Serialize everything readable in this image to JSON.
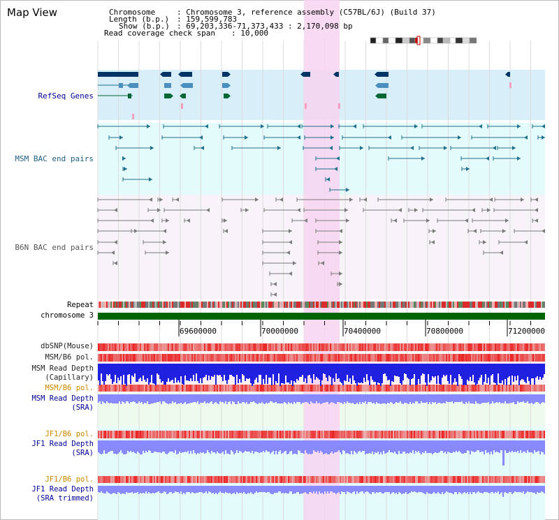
{
  "window_title": "Map View",
  "header": {
    "chromosome_key": "Chromosome",
    "chromosome_value": ": Chromosome 3, reference assembly (C57BL/6J) (Build 37)",
    "length_key": "Length (b.p.)",
    "length_value": ": 159,599,783",
    "show_key": "Show (b.p.)",
    "show_value": ": 69,203,336-71,373,433 : 2,170,098 bp",
    "coverage_key": "Read coverage check span",
    "coverage_value": ": 10,000"
  },
  "tracks": {
    "refseq": "RefSeq Genes",
    "msm_bac": "MSM BAC end pairs",
    "b6n_bac": "B6N BAC end pairs",
    "repeat": "Repeat",
    "chromosome": "chromosome 3",
    "dbsnp": "dbSNP(Mouse)",
    "msm_b6_pol": "MSM/B6 pol.",
    "msm_read_depth_cap_1": "MSM Read Depth",
    "msm_read_depth_cap_2": "(Capillary)",
    "msm_b6_pol_sra": "MSM/B6 pol.",
    "msm_read_depth_sra_1": "MSM Read Depth",
    "msm_read_depth_sra_2": "(SRA)",
    "jf1_b6_pol": "JF1/B6 pol.",
    "jf1_read_depth_1": "JF1 Read Depth",
    "jf1_read_depth_2": "(SRA)",
    "jf1_b6_pol_trim": "JF1/B6 pol.",
    "jf1_read_depth_trim_1": "JF1 Read Depth",
    "jf1_read_depth_trim_2": "(SRA trimmed)"
  },
  "axis": {
    "ticks": [
      "69600000",
      "70000000",
      "70400000",
      "70800000",
      "71200000"
    ]
  },
  "colors": {
    "refseq_bg": "#d8eef9",
    "bac_bg": "#e4fbfb",
    "b6n_bg": "#f7f3f9",
    "highlight": "#f8d3f1",
    "chromosome_bar": "#006400",
    "gene_dark": "#003366",
    "gene_mid": "#4a8fbf",
    "gene_green": "#006633",
    "msm_teal": "#1f6e8a",
    "b6n_gray": "#7a7a7a",
    "depth_blue": "#2020e0",
    "depth_lilac": "#8888ff",
    "label_blue": "#000099",
    "label_orange": "#cc8800"
  }
}
